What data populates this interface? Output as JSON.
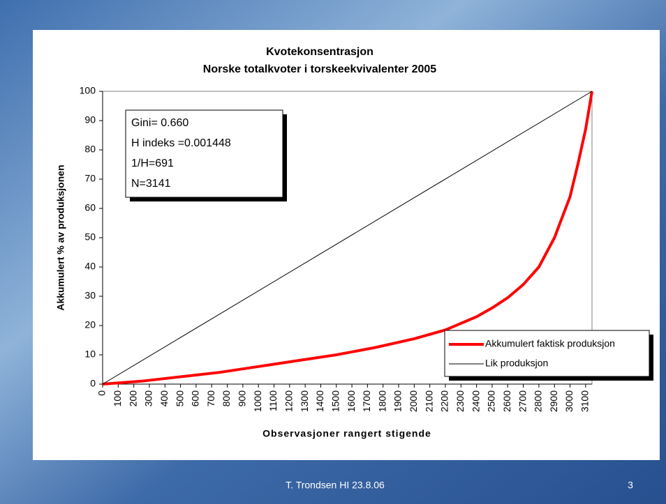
{
  "chart_data": {
    "type": "line",
    "title": "Kvotekonsentrasjon",
    "subtitle": "Norske totalkvoter i torskeekvivalenter 2005",
    "xlabel": "Observasjoner rangert stigende",
    "ylabel": "Akkumulert % av produksjonen",
    "annotation_lines": [
      "Gini= 0.660",
      "H indeks =0.001448",
      "1/H=691",
      "N=3141"
    ],
    "xlim": [
      0,
      3141
    ],
    "xticks": [
      0,
      100,
      200,
      300,
      400,
      500,
      600,
      700,
      800,
      900,
      1000,
      1100,
      1200,
      1300,
      1400,
      1500,
      1600,
      1700,
      1800,
      1900,
      2000,
      2100,
      2200,
      2300,
      2400,
      2500,
      2600,
      2700,
      2800,
      2900,
      3000,
      3100
    ],
    "ylim": [
      0,
      100
    ],
    "yticks": [
      0,
      10,
      20,
      30,
      40,
      50,
      60,
      70,
      80,
      90,
      100
    ],
    "grid": false,
    "legend": "lower right",
    "series": [
      {
        "name": "Akkumulert faktisk produksjon",
        "color": "#ff0000",
        "x": [
          0,
          250,
          500,
          750,
          1000,
          1250,
          1500,
          1750,
          2000,
          2200,
          2400,
          2500,
          2600,
          2700,
          2800,
          2900,
          3000,
          3050,
          3100,
          3141
        ],
        "values": [
          0,
          1,
          2.5,
          4,
          6,
          8,
          10,
          12.5,
          15.5,
          18.5,
          23,
          26,
          29.5,
          34,
          40,
          50,
          64,
          75,
          87,
          100
        ]
      },
      {
        "name": "Lik produksjon",
        "color": "#000000",
        "x": [
          0,
          3141
        ],
        "values": [
          0,
          100
        ]
      }
    ]
  },
  "footer": "T. Trondsen HI 23.8.06",
  "page_number": "3"
}
